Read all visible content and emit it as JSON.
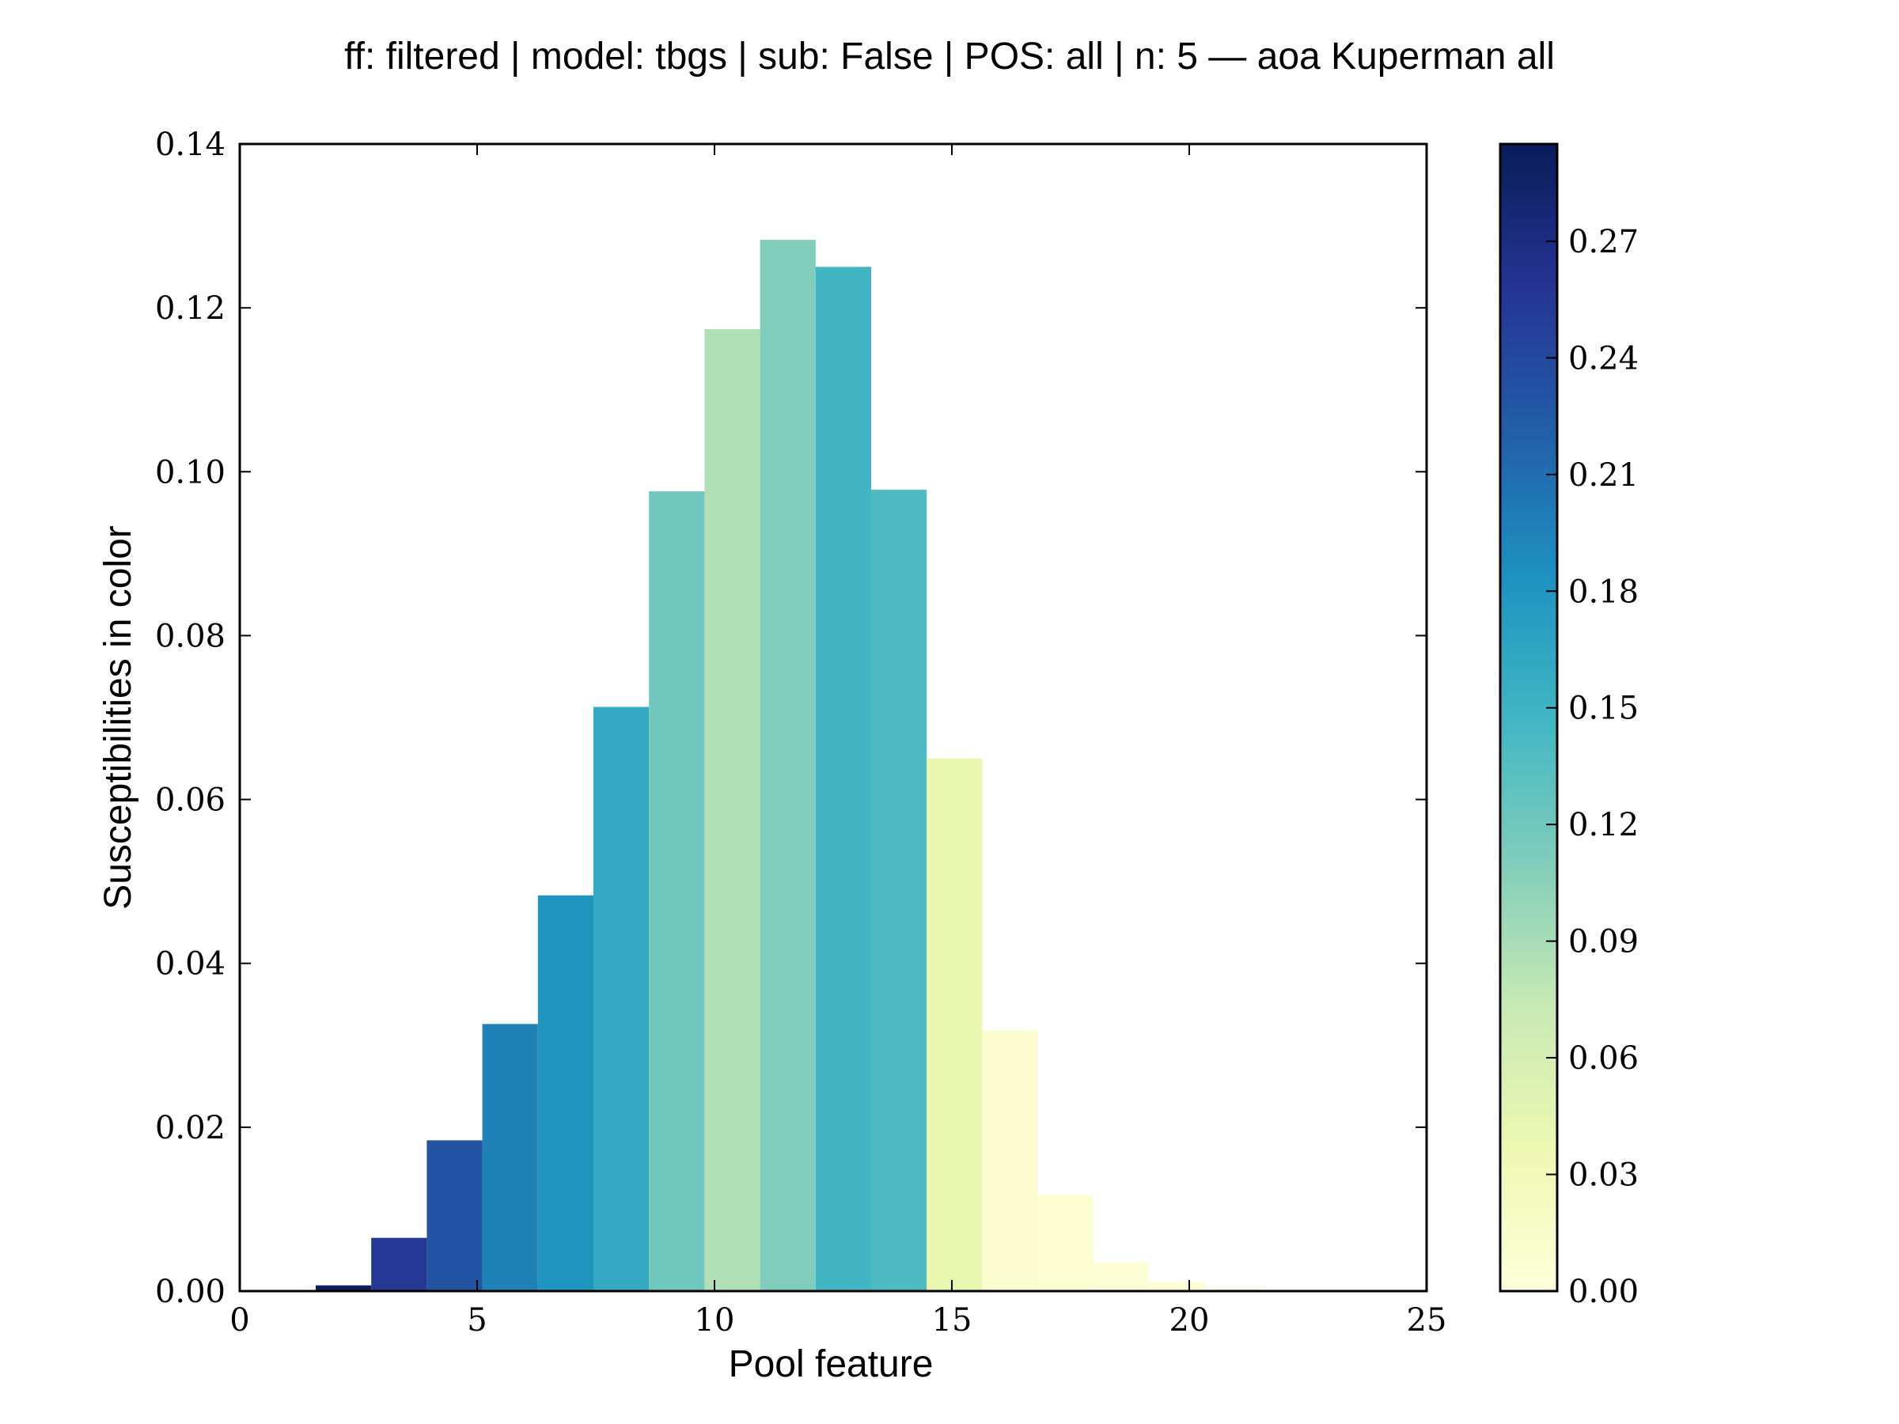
{
  "chart_data": {
    "type": "bar",
    "title": "ff: filtered | model: tbgs | sub: False | POS: all | n: 5 — aoa Kuperman all",
    "xlabel": "Pool feature",
    "ylabel": "Susceptibilities in color",
    "xlim": [
      0,
      25
    ],
    "ylim": [
      0,
      0.14
    ],
    "x_ticks": [
      "0",
      "5",
      "10",
      "15",
      "20",
      "25"
    ],
    "y_ticks": [
      "0.00",
      "0.02",
      "0.04",
      "0.06",
      "0.08",
      "0.10",
      "0.12",
      "0.14"
    ],
    "bin_width": 1.17,
    "bins": [
      {
        "x": 1.6,
        "value": 0.0007,
        "color_value": 0.29
      },
      {
        "x": 2.77,
        "value": 0.0065,
        "color_value": 0.255
      },
      {
        "x": 3.94,
        "value": 0.0184,
        "color_value": 0.23
      },
      {
        "x": 5.11,
        "value": 0.0326,
        "color_value": 0.195
      },
      {
        "x": 6.28,
        "value": 0.0483,
        "color_value": 0.18
      },
      {
        "x": 7.45,
        "value": 0.0713,
        "color_value": 0.16
      },
      {
        "x": 8.62,
        "value": 0.0976,
        "color_value": 0.12
      },
      {
        "x": 9.79,
        "value": 0.1174,
        "color_value": 0.085
      },
      {
        "x": 10.96,
        "value": 0.1283,
        "color_value": 0.11
      },
      {
        "x": 12.13,
        "value": 0.125,
        "color_value": 0.148
      },
      {
        "x": 13.3,
        "value": 0.0978,
        "color_value": 0.14
      },
      {
        "x": 14.47,
        "value": 0.065,
        "color_value": 0.04
      },
      {
        "x": 15.64,
        "value": 0.0318,
        "color_value": 0.008
      },
      {
        "x": 16.81,
        "value": 0.0117,
        "color_value": 0.006
      },
      {
        "x": 17.98,
        "value": 0.0035,
        "color_value": 0.004
      },
      {
        "x": 19.15,
        "value": 0.0011,
        "color_value": 0.003
      },
      {
        "x": 20.32,
        "value": 0.0003,
        "color_value": 0.002
      }
    ],
    "colorbar": {
      "colormap": "YlGnBu",
      "range": [
        0,
        0.295
      ],
      "ticks": [
        "0.00",
        "0.03",
        "0.06",
        "0.09",
        "0.12",
        "0.15",
        "0.18",
        "0.21",
        "0.24",
        "0.27"
      ],
      "stops": [
        "#ffffd9",
        "#edf8b1",
        "#c7e9b4",
        "#7fcdbb",
        "#41b6c4",
        "#1d91c0",
        "#225ea8",
        "#253494",
        "#081d58"
      ]
    },
    "grid": false,
    "legend": "none"
  }
}
